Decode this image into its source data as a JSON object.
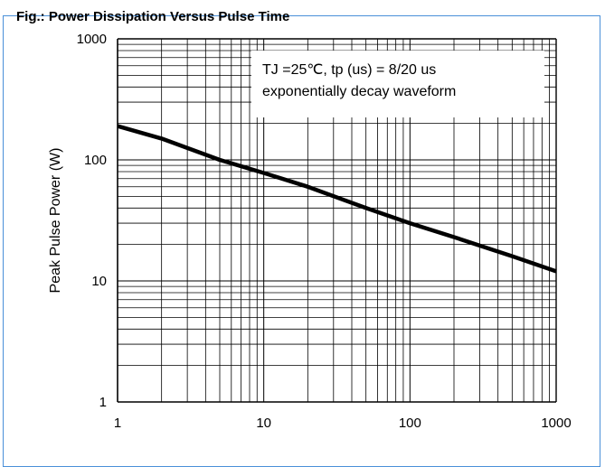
{
  "figure": {
    "title": "Fig.: Power Dissipation Versus Pulse Time"
  },
  "chart_data": {
    "type": "line",
    "title": "Fig.: Power Dissipation Versus Pulse Time",
    "xlabel": "",
    "ylabel": "Peak Pulse Power (W)",
    "x_scale": "log",
    "y_scale": "log",
    "xlim": [
      1,
      1000
    ],
    "ylim": [
      1,
      1000
    ],
    "x_ticks": [
      "1",
      "10",
      "100",
      "1000"
    ],
    "y_ticks": [
      "1",
      "10",
      "100",
      "1000"
    ],
    "grid": true,
    "legend": "none",
    "annotation": {
      "line1": "TJ =25℃, tp (us) = 8/20 us",
      "line2": "exponentially decay waveform",
      "placement": "top-right"
    },
    "series": [
      {
        "color": "#000000",
        "x": [
          1,
          2,
          5,
          10,
          20,
          50,
          100,
          200,
          500,
          1000
        ],
        "y": [
          190,
          150,
          100,
          78,
          60,
          40,
          30,
          23,
          16,
          12
        ]
      }
    ]
  }
}
